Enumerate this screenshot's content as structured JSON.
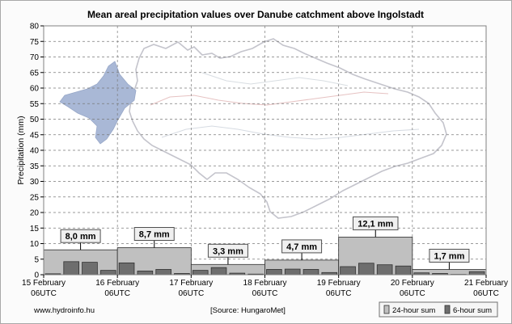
{
  "chart_data": {
    "type": "bar",
    "title": "Mean areal precipitation values over Danube catchment above Ingolstadt",
    "ylabel": "Precipitation (mm)",
    "xlabel": "",
    "ylim": [
      0,
      80
    ],
    "y_ticks": [
      0,
      5,
      10,
      15,
      20,
      25,
      30,
      35,
      40,
      45,
      50,
      55,
      60,
      65,
      70,
      75,
      80
    ],
    "grid": true,
    "x_ticks": [
      {
        "date": "15 February",
        "time": "06UTC"
      },
      {
        "date": "16 February",
        "time": "06UTC"
      },
      {
        "date": "17 February",
        "time": "06UTC"
      },
      {
        "date": "18 February",
        "time": "06UTC"
      },
      {
        "date": "19 February",
        "time": "06UTC"
      },
      {
        "date": "20 February",
        "time": "06UTC"
      },
      {
        "date": "21 February",
        "time": "06UTC"
      }
    ],
    "series": [
      {
        "name": "24-hour sum",
        "color": "#c0c0c0",
        "categories": [
          "15 February",
          "16 February",
          "17 February",
          "18 February",
          "19 February",
          "20 February"
        ],
        "values": [
          8.0,
          8.7,
          3.3,
          4.7,
          12.1,
          1.7
        ],
        "labels": [
          "8,0 mm",
          "8,7 mm",
          "3,3 mm",
          "4,7 mm",
          "12,1 mm",
          "1,7 mm"
        ]
      },
      {
        "name": "6-hour sum",
        "color": "#6e6e6e",
        "values": [
          0.3,
          4.2,
          4.0,
          1.4,
          3.8,
          1.2,
          1.7,
          0.4,
          1.4,
          2.3,
          0.5,
          0.2,
          1.7,
          1.8,
          1.7,
          0.7,
          2.6,
          3.7,
          3.2,
          2.8,
          0.6,
          0.4,
          0.1,
          1.0
        ]
      }
    ]
  },
  "legend": {
    "placement": "bottom-right",
    "items": [
      "24-hour sum",
      "6-hour sum"
    ]
  },
  "footer": {
    "website": "www.hydroinfo.hu",
    "source": "[Source: HungaroMet]"
  },
  "map_icon": "danube-catchment-map"
}
